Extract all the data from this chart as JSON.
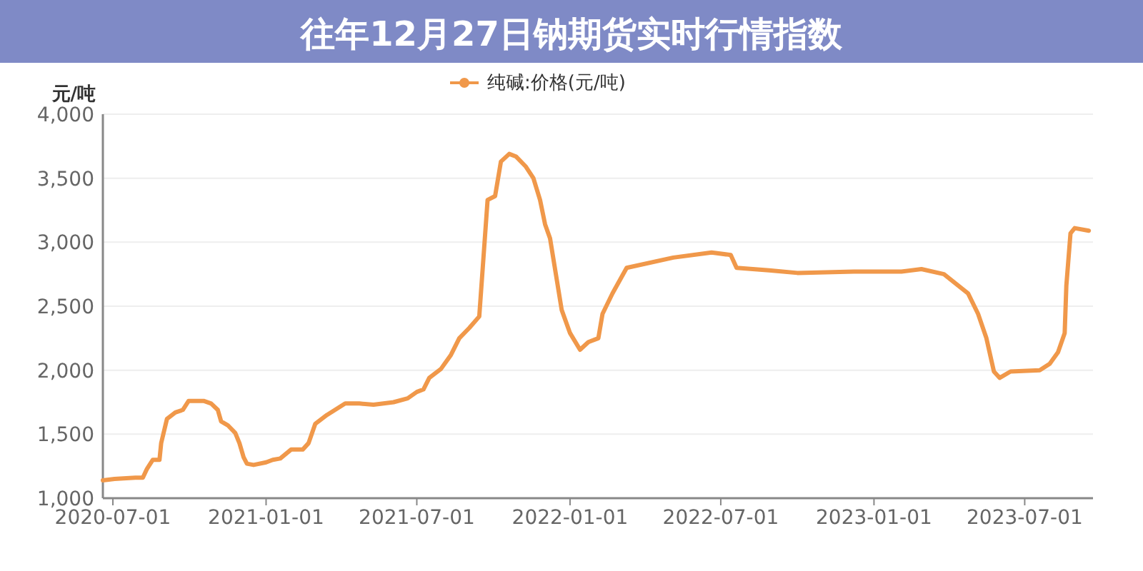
{
  "chart_data": {
    "type": "line",
    "title": "往年12月27日钠期货实时行情指数",
    "ylabel": "元/吨",
    "legend": "top",
    "grid": "y",
    "xlim": [
      "2020-06-19",
      "2023-09-21"
    ],
    "xticks": [
      "2020-07-01",
      "2021-01-01",
      "2021-07-01",
      "2022-01-01",
      "2022-07-01",
      "2023-01-01",
      "2023-07-01"
    ],
    "ylim": [
      1000,
      4000
    ],
    "yticks": [
      {
        "value": 1000,
        "label": "1,000"
      },
      {
        "value": 1500,
        "label": "1,500"
      },
      {
        "value": 2000,
        "label": "2,000"
      },
      {
        "value": 2500,
        "label": "2,500"
      },
      {
        "value": 3000,
        "label": "3,000"
      },
      {
        "value": 3500,
        "label": "3,500"
      },
      {
        "value": 4000,
        "label": "4,000"
      }
    ],
    "series": [
      {
        "name": "纯碱:价格(元/吨)",
        "color": "#f0984a",
        "x": [
          "2020-06-19",
          "2020-07-03",
          "2020-07-28",
          "2020-08-06",
          "2020-08-11",
          "2020-08-18",
          "2020-08-26",
          "2020-08-28",
          "2020-09-04",
          "2020-09-14",
          "2020-09-23",
          "2020-09-30",
          "2020-10-18",
          "2020-10-27",
          "2020-11-04",
          "2020-11-08",
          "2020-11-16",
          "2020-11-25",
          "2020-11-30",
          "2020-12-05",
          "2020-12-09",
          "2020-12-17",
          "2021-01-01",
          "2021-01-09",
          "2021-01-18",
          "2021-01-31",
          "2021-02-14",
          "2021-02-21",
          "2021-03-01",
          "2021-03-15",
          "2021-04-06",
          "2021-04-23",
          "2021-05-10",
          "2021-06-03",
          "2021-06-20",
          "2021-07-01",
          "2021-07-09",
          "2021-07-16",
          "2021-07-30",
          "2021-08-11",
          "2021-08-21",
          "2021-09-02",
          "2021-09-14",
          "2021-09-24",
          "2021-10-03",
          "2021-10-10",
          "2021-10-20",
          "2021-10-28",
          "2021-11-09",
          "2021-11-18",
          "2021-11-26",
          "2021-12-02",
          "2021-12-08",
          "2021-12-22",
          "2022-01-01",
          "2022-01-13",
          "2022-01-23",
          "2022-02-04",
          "2022-02-09",
          "2022-02-21",
          "2022-03-10",
          "2022-05-05",
          "2022-06-20",
          "2022-07-13",
          "2022-07-20",
          "2022-08-28",
          "2022-10-01",
          "2022-12-08",
          "2023-02-03",
          "2023-02-27",
          "2023-03-26",
          "2023-04-24",
          "2023-05-06",
          "2023-05-16",
          "2023-05-25",
          "2023-06-01",
          "2023-06-14",
          "2023-07-19",
          "2023-07-31",
          "2023-08-10",
          "2023-08-18",
          "2023-08-20",
          "2023-08-25",
          "2023-08-30",
          "2023-09-16"
        ],
        "values": [
          1140,
          1150,
          1160,
          1160,
          1230,
          1300,
          1300,
          1430,
          1620,
          1670,
          1690,
          1760,
          1760,
          1740,
          1690,
          1600,
          1570,
          1510,
          1430,
          1320,
          1270,
          1260,
          1280,
          1300,
          1310,
          1380,
          1380,
          1430,
          1580,
          1650,
          1740,
          1740,
          1730,
          1750,
          1780,
          1830,
          1850,
          1940,
          2010,
          2120,
          2250,
          2330,
          2420,
          3330,
          3360,
          3630,
          3690,
          3670,
          3590,
          3500,
          3330,
          3140,
          3030,
          2470,
          2290,
          2160,
          2220,
          2250,
          2440,
          2600,
          2800,
          2880,
          2920,
          2900,
          2800,
          2780,
          2760,
          2770,
          2770,
          2790,
          2750,
          2600,
          2440,
          2250,
          1990,
          1940,
          1990,
          2000,
          2050,
          2140,
          2290,
          2660,
          3070,
          3110,
          3090
        ]
      }
    ]
  }
}
